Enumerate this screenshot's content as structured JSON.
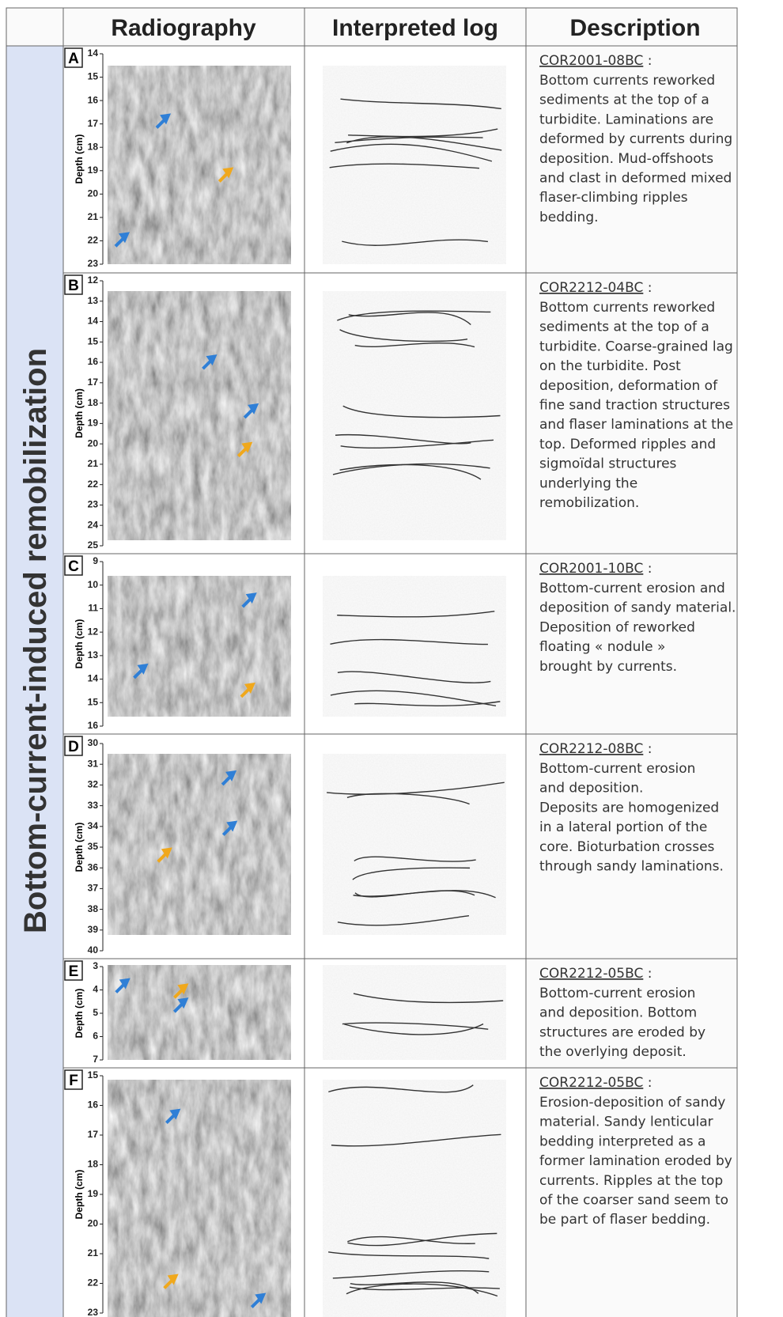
{
  "header": {
    "columns": [
      "Radiography",
      "Interpreted log",
      "Description"
    ]
  },
  "side_label": "Bottom-current-induced remobilization",
  "rows": [
    {
      "letter": "A",
      "depth_label": "Depth (cm)",
      "depth_ticks": [
        14,
        15,
        16,
        17,
        18,
        19,
        20,
        21,
        22,
        23
      ],
      "sample": "COR2001-08BC",
      "colon": ":",
      "lines": [
        "Bottom currents reworked",
        "sediments at the top of a",
        "turbidite. Laminations are",
        "deformed by currents during",
        "deposition. Mud-offshoots",
        "and clast in deformed mixed",
        "flaser-climbing ripples",
        "bedding."
      ]
    },
    {
      "letter": "B",
      "depth_label": "Depth (cm)",
      "depth_ticks": [
        12,
        13,
        14,
        15,
        16,
        17,
        18,
        19,
        20,
        21,
        22,
        23,
        24,
        25
      ],
      "sample": "COR2212-04BC",
      "colon": ":",
      "lines": [
        "Bottom currents reworked",
        "sediments at the top of a",
        "turbidite. Coarse-grained lag",
        "on the turbidite. Post",
        "deposition, deformation of",
        "fine sand traction structures",
        "and flaser laminations at the",
        "top. Deformed ripples and",
        "sigmoïdal structures",
        "underlying the",
        "remobilization."
      ]
    },
    {
      "letter": "C",
      "depth_label": "Depth (cm)",
      "depth_ticks": [
        9,
        10,
        11,
        12,
        13,
        14,
        15,
        16
      ],
      "sample": "COR2001-10BC",
      "colon": ":",
      "lines": [
        "Bottom-current erosion and",
        "deposition of sandy material.",
        "Deposition of reworked",
        "floating « nodule »",
        "brought by currents."
      ]
    },
    {
      "letter": "D",
      "depth_label": "Depth (cm)",
      "depth_ticks": [
        30,
        31,
        32,
        33,
        34,
        35,
        36,
        37,
        38,
        39,
        40
      ],
      "sample": "COR2212-08BC",
      "colon": ":",
      "lines": [
        "Bottom-current erosion",
        "and deposition.",
        "Deposits are homogenized",
        "in a lateral portion of the",
        "core. Bioturbation crosses",
        "through sandy laminations."
      ]
    },
    {
      "letter": "E",
      "depth_label": "Depth (cm)",
      "depth_ticks": [
        3,
        4,
        5,
        6,
        7
      ],
      "sample": "COR2212-05BC",
      "colon": ":",
      "lines": [
        "Bottom-current erosion",
        "and deposition. Bottom",
        "structures are eroded by",
        "the overlying deposit."
      ]
    },
    {
      "letter": "F",
      "depth_label": "Depth (cm)",
      "depth_ticks": [
        15,
        16,
        17,
        18,
        19,
        20,
        21,
        22,
        23
      ],
      "sample": "COR2212-05BC",
      "colon": ":",
      "lines": [
        "Erosion-deposition of sandy",
        "material. Sandy lenticular",
        "bedding interpreted as a",
        "former lamination eroded by",
        "currents. Ripples at the top",
        "of the coarser sand seem to",
        "be part of flaser bedding."
      ]
    }
  ]
}
